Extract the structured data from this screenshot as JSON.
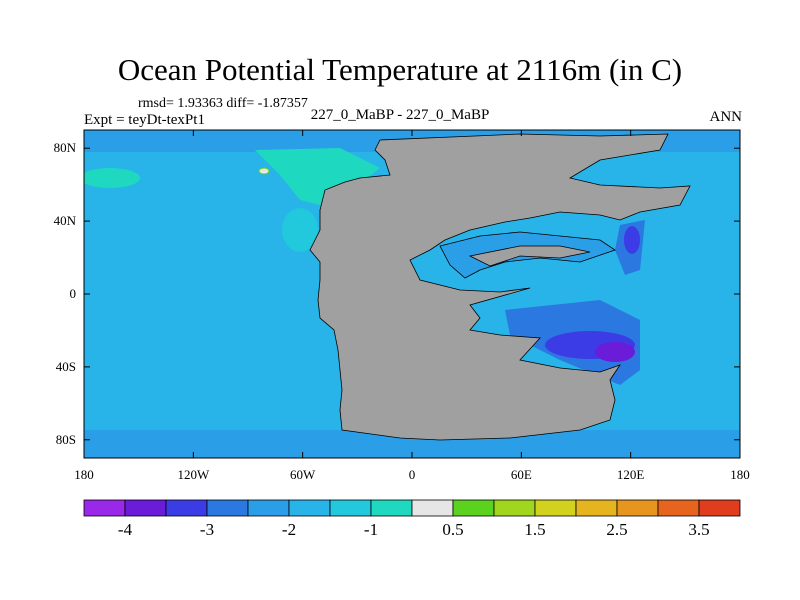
{
  "header": {
    "title": "Ocean Potential Temperature at 2116m (in C)",
    "stats": "rmsd= 1.93363 diff= -1.87357",
    "experiment": "Expt = teyDt-texPt1",
    "case_label": "227_0_MaBP - 227_0_MaBP",
    "season": "ANN"
  },
  "map": {
    "projection": "cylindrical equidistant",
    "lon_range": [
      -180,
      180
    ],
    "lat_range": [
      -90,
      90
    ],
    "land_color": "#a0a0a0",
    "lat_ticks": [
      {
        "value": 80,
        "label": "80N"
      },
      {
        "value": 40,
        "label": "40N"
      },
      {
        "value": 0,
        "label": "0"
      },
      {
        "value": -40,
        "label": "40S"
      },
      {
        "value": -80,
        "label": "80S"
      }
    ],
    "lon_ticks": [
      {
        "value": -180,
        "label": "180"
      },
      {
        "value": -120,
        "label": "120W"
      },
      {
        "value": -60,
        "label": "60W"
      },
      {
        "value": 0,
        "label": "0"
      },
      {
        "value": 60,
        "label": "60E"
      },
      {
        "value": 120,
        "label": "120E"
      },
      {
        "value": 180,
        "label": "180"
      }
    ]
  },
  "colorbar": {
    "colors": [
      "#9a28e8",
      "#6a1cd8",
      "#3c3ce6",
      "#2a78e0",
      "#2a9ee6",
      "#28b4e8",
      "#22c8dc",
      "#1ed8c0",
      "#e6e6e6",
      "#5ad21e",
      "#a0d61e",
      "#d2d21e",
      "#e6b41e",
      "#e6961e",
      "#e6641e",
      "#e03c1e"
    ],
    "labels": [
      "-4",
      "-3",
      "-2",
      "-1",
      "0.5",
      "1.5",
      "2.5",
      "3.5"
    ]
  },
  "chart_data": {
    "type": "heatmap",
    "title": "Ocean Potential Temperature at 2116m (in C)",
    "units": "C",
    "x_range": [
      -180,
      180
    ],
    "y_range": [
      -90,
      90
    ],
    "colorbar_labels": [
      -4,
      -3,
      -2,
      -1,
      0.5,
      1.5,
      2.5,
      3.5
    ],
    "summary": {
      "rmsd": 1.93363,
      "diff": -1.87357
    },
    "grid": false
  }
}
